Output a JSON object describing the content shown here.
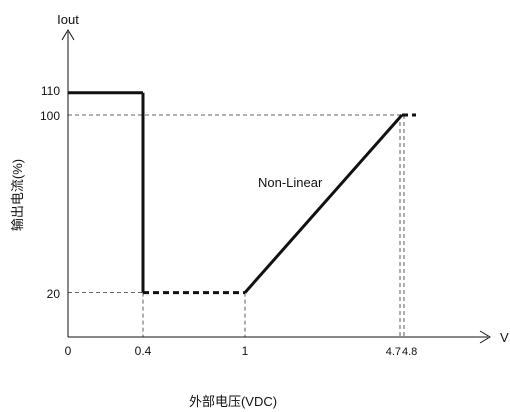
{
  "chart_data": {
    "type": "line",
    "xlabel": "外部电压(VDC)",
    "ylabel": "输出电流(%)",
    "x_axis_name": "V",
    "y_axis_name": "Iout",
    "x_ticks": [
      "0",
      "0.4",
      "1",
      "4.7",
      "4.8"
    ],
    "y_ticks": [
      "20",
      "100",
      "110"
    ],
    "xlim": [
      0,
      5
    ],
    "ylim": [
      0,
      110
    ],
    "annotation": "Non-Linear",
    "series": [
      {
        "segments": [
          {
            "style": "solid",
            "points": [
              [
                0,
                110
              ],
              [
                0.4,
                110
              ]
            ]
          },
          {
            "style": "solid",
            "points": [
              [
                0.4,
                110
              ],
              [
                0.4,
                20
              ]
            ]
          },
          {
            "style": "dashed",
            "points": [
              [
                0.4,
                20
              ],
              [
                1,
                20
              ]
            ]
          },
          {
            "style": "solid",
            "points": [
              [
                1,
                20
              ],
              [
                4.75,
                100
              ]
            ]
          },
          {
            "style": "dashed",
            "points": [
              [
                4.75,
                100
              ],
              [
                5.1,
                100
              ]
            ]
          }
        ]
      }
    ],
    "colors": {
      "line": "#111111",
      "guide": "#333333"
    },
    "grid": false
  }
}
